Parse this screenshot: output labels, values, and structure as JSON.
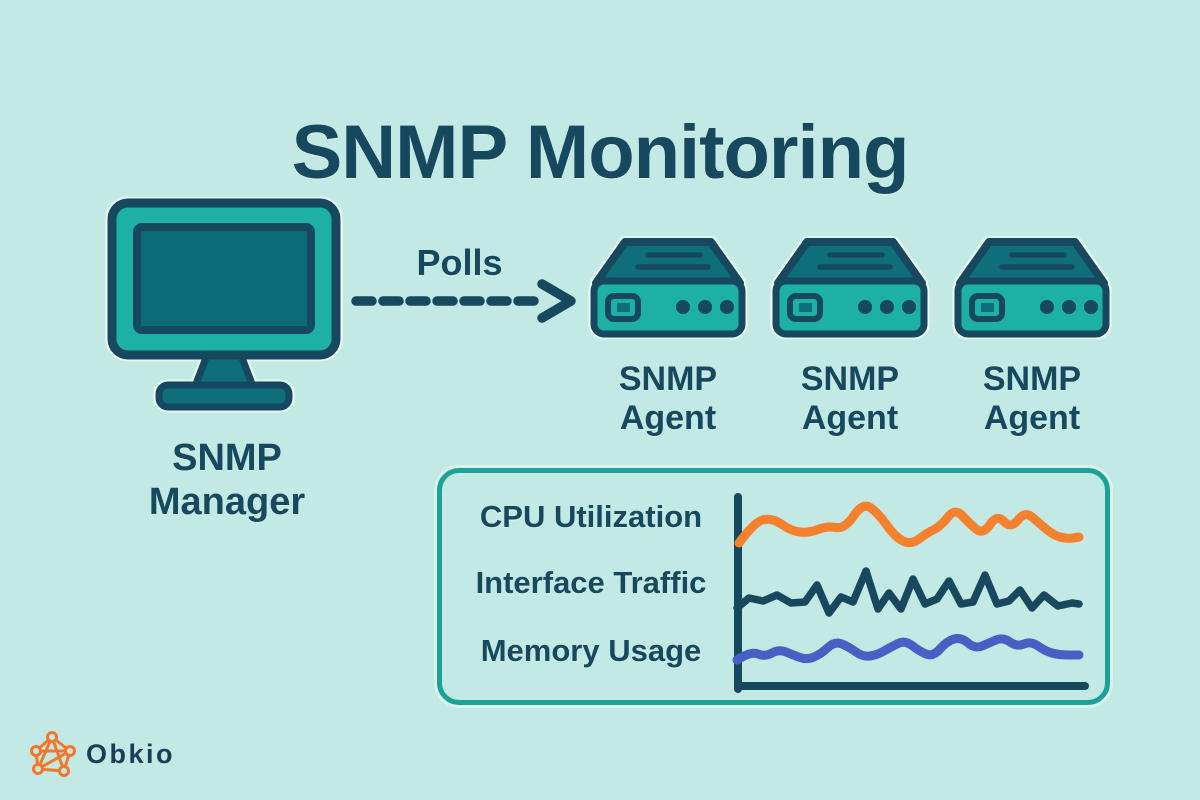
{
  "title": "SNMP Monitoring",
  "manager": {
    "icon": "desktop-monitor-icon",
    "label_line1": "SNMP",
    "label_line2": "Manager"
  },
  "polls": {
    "label": "Polls",
    "arrow": "dashed-right-arrow"
  },
  "agents": [
    {
      "icon": "server-icon",
      "label_line1": "SNMP",
      "label_line2": "Agent"
    },
    {
      "icon": "server-icon",
      "label_line1": "SNMP",
      "label_line2": "Agent"
    },
    {
      "icon": "server-icon",
      "label_line1": "SNMP",
      "label_line2": "Agent"
    }
  ],
  "brand": {
    "name": "Obkio",
    "icon": "network-graph-icon"
  },
  "colors": {
    "background": "#c2e9e3",
    "ink_navy": "#16485f",
    "teal_bright": "#1db1a6",
    "teal_dark": "#0e6e79",
    "panel_border_teal": "#1aa396",
    "cpu_orange": "#f5812e",
    "traffic_navy": "#17485f",
    "memory_indigo": "#4a5fc4",
    "brand_orange": "#f5762b",
    "brand_text": "#1e3c59"
  },
  "chart_data": {
    "type": "line",
    "title": "",
    "xlabel": "",
    "ylabel": "",
    "axis_ticks": "none (stylized infographic sparklines)",
    "coordinate_space": "svg-pixels within 380x235 plot, y-down",
    "panel_labels": [
      "CPU Utilization",
      "Interface Traffic",
      "Memory Usage"
    ],
    "series": [
      {
        "name": "CPU Utilization",
        "color": "#f5812e",
        "style": "smooth",
        "width": 9,
        "points": [
          [
            12,
            72
          ],
          [
            28,
            50
          ],
          [
            46,
            47
          ],
          [
            64,
            60
          ],
          [
            82,
            62
          ],
          [
            100,
            55
          ],
          [
            118,
            58
          ],
          [
            136,
            31
          ],
          [
            152,
            43
          ],
          [
            168,
            66
          ],
          [
            184,
            74
          ],
          [
            200,
            62
          ],
          [
            214,
            55
          ],
          [
            228,
            37
          ],
          [
            242,
            52
          ],
          [
            256,
            64
          ],
          [
            270,
            43
          ],
          [
            284,
            58
          ],
          [
            298,
            40
          ],
          [
            312,
            52
          ],
          [
            326,
            64
          ],
          [
            340,
            68
          ],
          [
            352,
            66
          ]
        ]
      },
      {
        "name": "Interface Traffic",
        "color": "#17485f",
        "style": "jagged",
        "width": 7.5,
        "points": [
          [
            10,
            137
          ],
          [
            22,
            127
          ],
          [
            36,
            130
          ],
          [
            50,
            124
          ],
          [
            64,
            132
          ],
          [
            78,
            131
          ],
          [
            90,
            114
          ],
          [
            102,
            142
          ],
          [
            114,
            126
          ],
          [
            126,
            131
          ],
          [
            139,
            100
          ],
          [
            151,
            138
          ],
          [
            162,
            122
          ],
          [
            174,
            138
          ],
          [
            186,
            108
          ],
          [
            198,
            133
          ],
          [
            210,
            128
          ],
          [
            222,
            110
          ],
          [
            234,
            133
          ],
          [
            246,
            131
          ],
          [
            258,
            104
          ],
          [
            270,
            133
          ],
          [
            282,
            130
          ],
          [
            293,
            119
          ],
          [
            305,
            137
          ],
          [
            317,
            124
          ],
          [
            331,
            135
          ],
          [
            345,
            132
          ],
          [
            352,
            133
          ]
        ]
      },
      {
        "name": "Memory Usage",
        "color": "#4a5fc4",
        "style": "smooth",
        "width": 9,
        "points": [
          [
            10,
            189
          ],
          [
            24,
            180
          ],
          [
            38,
            186
          ],
          [
            52,
            178
          ],
          [
            66,
            184
          ],
          [
            80,
            189
          ],
          [
            94,
            183
          ],
          [
            108,
            170
          ],
          [
            122,
            176
          ],
          [
            136,
            186
          ],
          [
            150,
            184
          ],
          [
            164,
            176
          ],
          [
            178,
            169
          ],
          [
            192,
            180
          ],
          [
            206,
            186
          ],
          [
            220,
            170
          ],
          [
            234,
            166
          ],
          [
            248,
            178
          ],
          [
            262,
            172
          ],
          [
            276,
            166
          ],
          [
            290,
            176
          ],
          [
            304,
            170
          ],
          [
            318,
            180
          ],
          [
            332,
            184
          ],
          [
            352,
            184
          ]
        ]
      }
    ]
  }
}
